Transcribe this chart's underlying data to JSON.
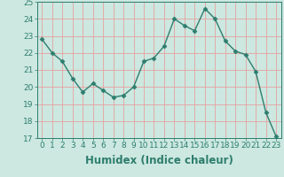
{
  "x": [
    0,
    1,
    2,
    3,
    4,
    5,
    6,
    7,
    8,
    9,
    10,
    11,
    12,
    13,
    14,
    15,
    16,
    17,
    18,
    19,
    20,
    21,
    22,
    23
  ],
  "y": [
    22.8,
    22.0,
    21.5,
    20.5,
    19.7,
    20.2,
    19.8,
    19.4,
    19.5,
    20.0,
    21.5,
    21.7,
    22.4,
    24.0,
    23.6,
    23.3,
    24.6,
    24.0,
    22.7,
    22.1,
    21.9,
    20.9,
    18.5,
    17.1
  ],
  "line_color": "#2e7d6e",
  "marker": "D",
  "marker_size": 2.5,
  "bg_color": "#cce8e0",
  "grid_color": "#e8a0a0",
  "xlabel": "Humidex (Indice chaleur)",
  "ylim": [
    17,
    25
  ],
  "xlim_min": -0.5,
  "xlim_max": 23.5,
  "yticks": [
    17,
    18,
    19,
    20,
    21,
    22,
    23,
    24,
    25
  ],
  "xticks": [
    0,
    1,
    2,
    3,
    4,
    5,
    6,
    7,
    8,
    9,
    10,
    11,
    12,
    13,
    14,
    15,
    16,
    17,
    18,
    19,
    20,
    21,
    22,
    23
  ],
  "tick_label_fontsize": 6.5,
  "xlabel_fontsize": 8.5,
  "tick_color": "#2e7d6e",
  "label_color": "#2e7d6e"
}
